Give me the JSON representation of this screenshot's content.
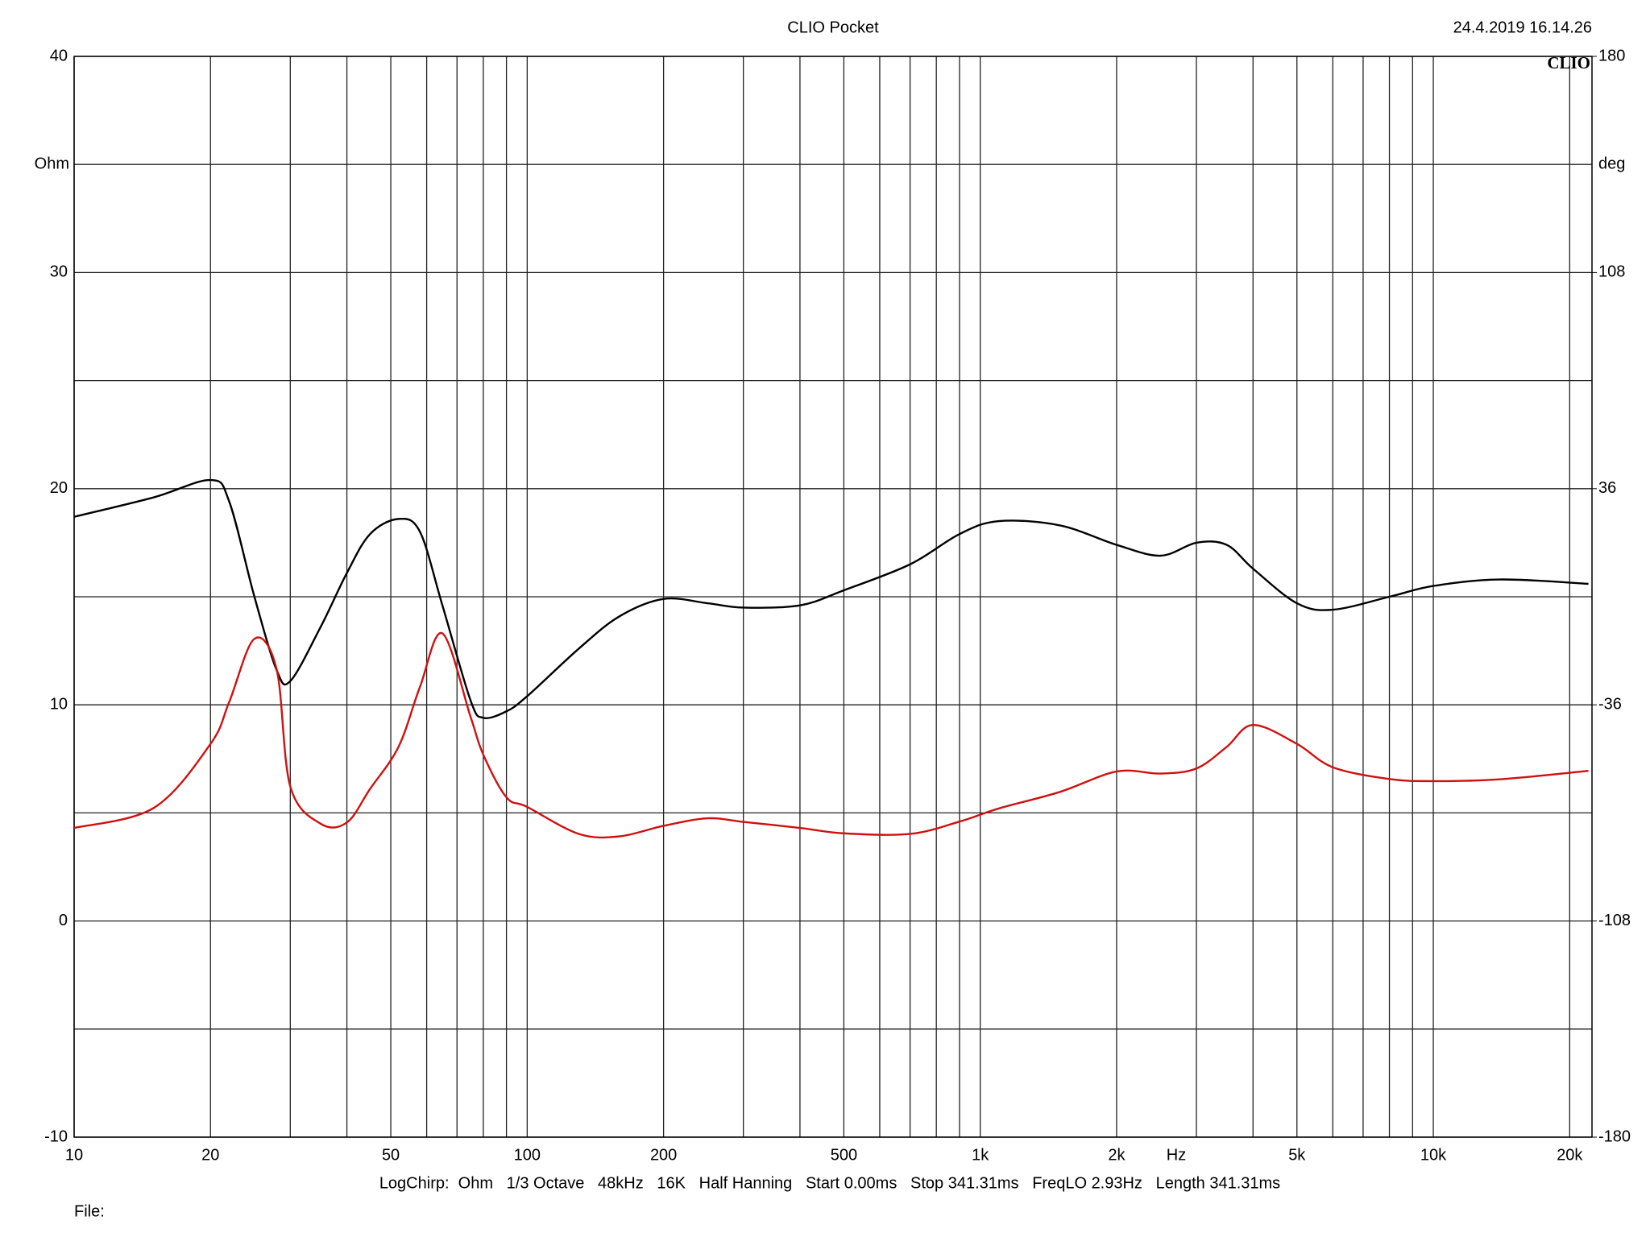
{
  "chart_data": {
    "type": "line",
    "title": "CLIO Pocket",
    "timestamp": "24.4.2019 16.14.26",
    "logo": "CLIO",
    "ylabel": "Ohm",
    "y2label": "deg",
    "xlabel": "Hz",
    "footer": "LogChirp:  Ohm   1/3 Octave   48kHz   16K   Half Hanning   Start 0.00ms   Stop 341.31ms   FreqLO 2.93Hz   Length 341.31ms",
    "file_label": "File:",
    "xscale": "log",
    "grid": true,
    "xlim": [
      10,
      22400
    ],
    "xticks": [
      10,
      20,
      50,
      100,
      200,
      500,
      {
        "value": 1000,
        "label": "1k"
      },
      {
        "value": 2000,
        "label": "2k"
      },
      {
        "value": 5000,
        "label": "5k"
      },
      {
        "value": 10000,
        "label": "10k"
      },
      {
        "value": 20000,
        "label": "20k"
      }
    ],
    "minor_xticks": [
      30,
      40,
      60,
      70,
      80,
      90,
      300,
      400,
      600,
      700,
      800,
      900,
      3000,
      4000,
      6000,
      7000,
      8000,
      9000
    ],
    "ylim": [
      -10,
      40
    ],
    "yticks": [
      -10,
      0,
      10,
      20,
      30,
      40
    ],
    "minor_yticks": [
      -5,
      5,
      15,
      25,
      35
    ],
    "y2lim": [
      -180,
      180
    ],
    "y2ticks": [
      -180,
      -108,
      -36,
      36,
      108,
      180
    ],
    "x": [
      10,
      15,
      20,
      22,
      25,
      28,
      30,
      35,
      40,
      45,
      52,
      58,
      65,
      75,
      80,
      90,
      100,
      130,
      160,
      200,
      250,
      300,
      400,
      500,
      700,
      900,
      1100,
      1500,
      2000,
      2500,
      3000,
      3500,
      4000,
      5000,
      6000,
      8000,
      10000,
      14000,
      22000
    ],
    "series": [
      {
        "color": "#000000",
        "values": [
          18.7,
          19.6,
          20.4,
          19.4,
          15.0,
          11.6,
          11.1,
          13.6,
          16.1,
          17.9,
          18.6,
          18.0,
          14.6,
          10.2,
          9.4,
          9.7,
          10.4,
          12.6,
          14.1,
          14.9,
          14.7,
          14.5,
          14.6,
          15.3,
          16.5,
          17.9,
          18.5,
          18.3,
          17.4,
          16.9,
          17.5,
          17.4,
          16.3,
          14.7,
          14.4,
          15.0,
          15.5,
          15.8,
          15.6
        ]
      },
      {
        "color": "#d01010",
        "axis": "y2",
        "values": [
          -77.0,
          -70.3,
          -49.0,
          -35.0,
          -14.0,
          -24.3,
          -63.2,
          -75.6,
          -75.2,
          -64.0,
          -50.0,
          -30.0,
          -12.2,
          -40.0,
          -52.6,
          -66.8,
          -70.0,
          -79.0,
          -79.8,
          -76.3,
          -73.8,
          -75.0,
          -77.0,
          -78.8,
          -79.0,
          -74.9,
          -70.5,
          -65.0,
          -58.2,
          -58.9,
          -57.2,
          -50.0,
          -42.7,
          -49.0,
          -56.8,
          -60.7,
          -61.4,
          -60.8,
          -58.0
        ]
      }
    ]
  }
}
